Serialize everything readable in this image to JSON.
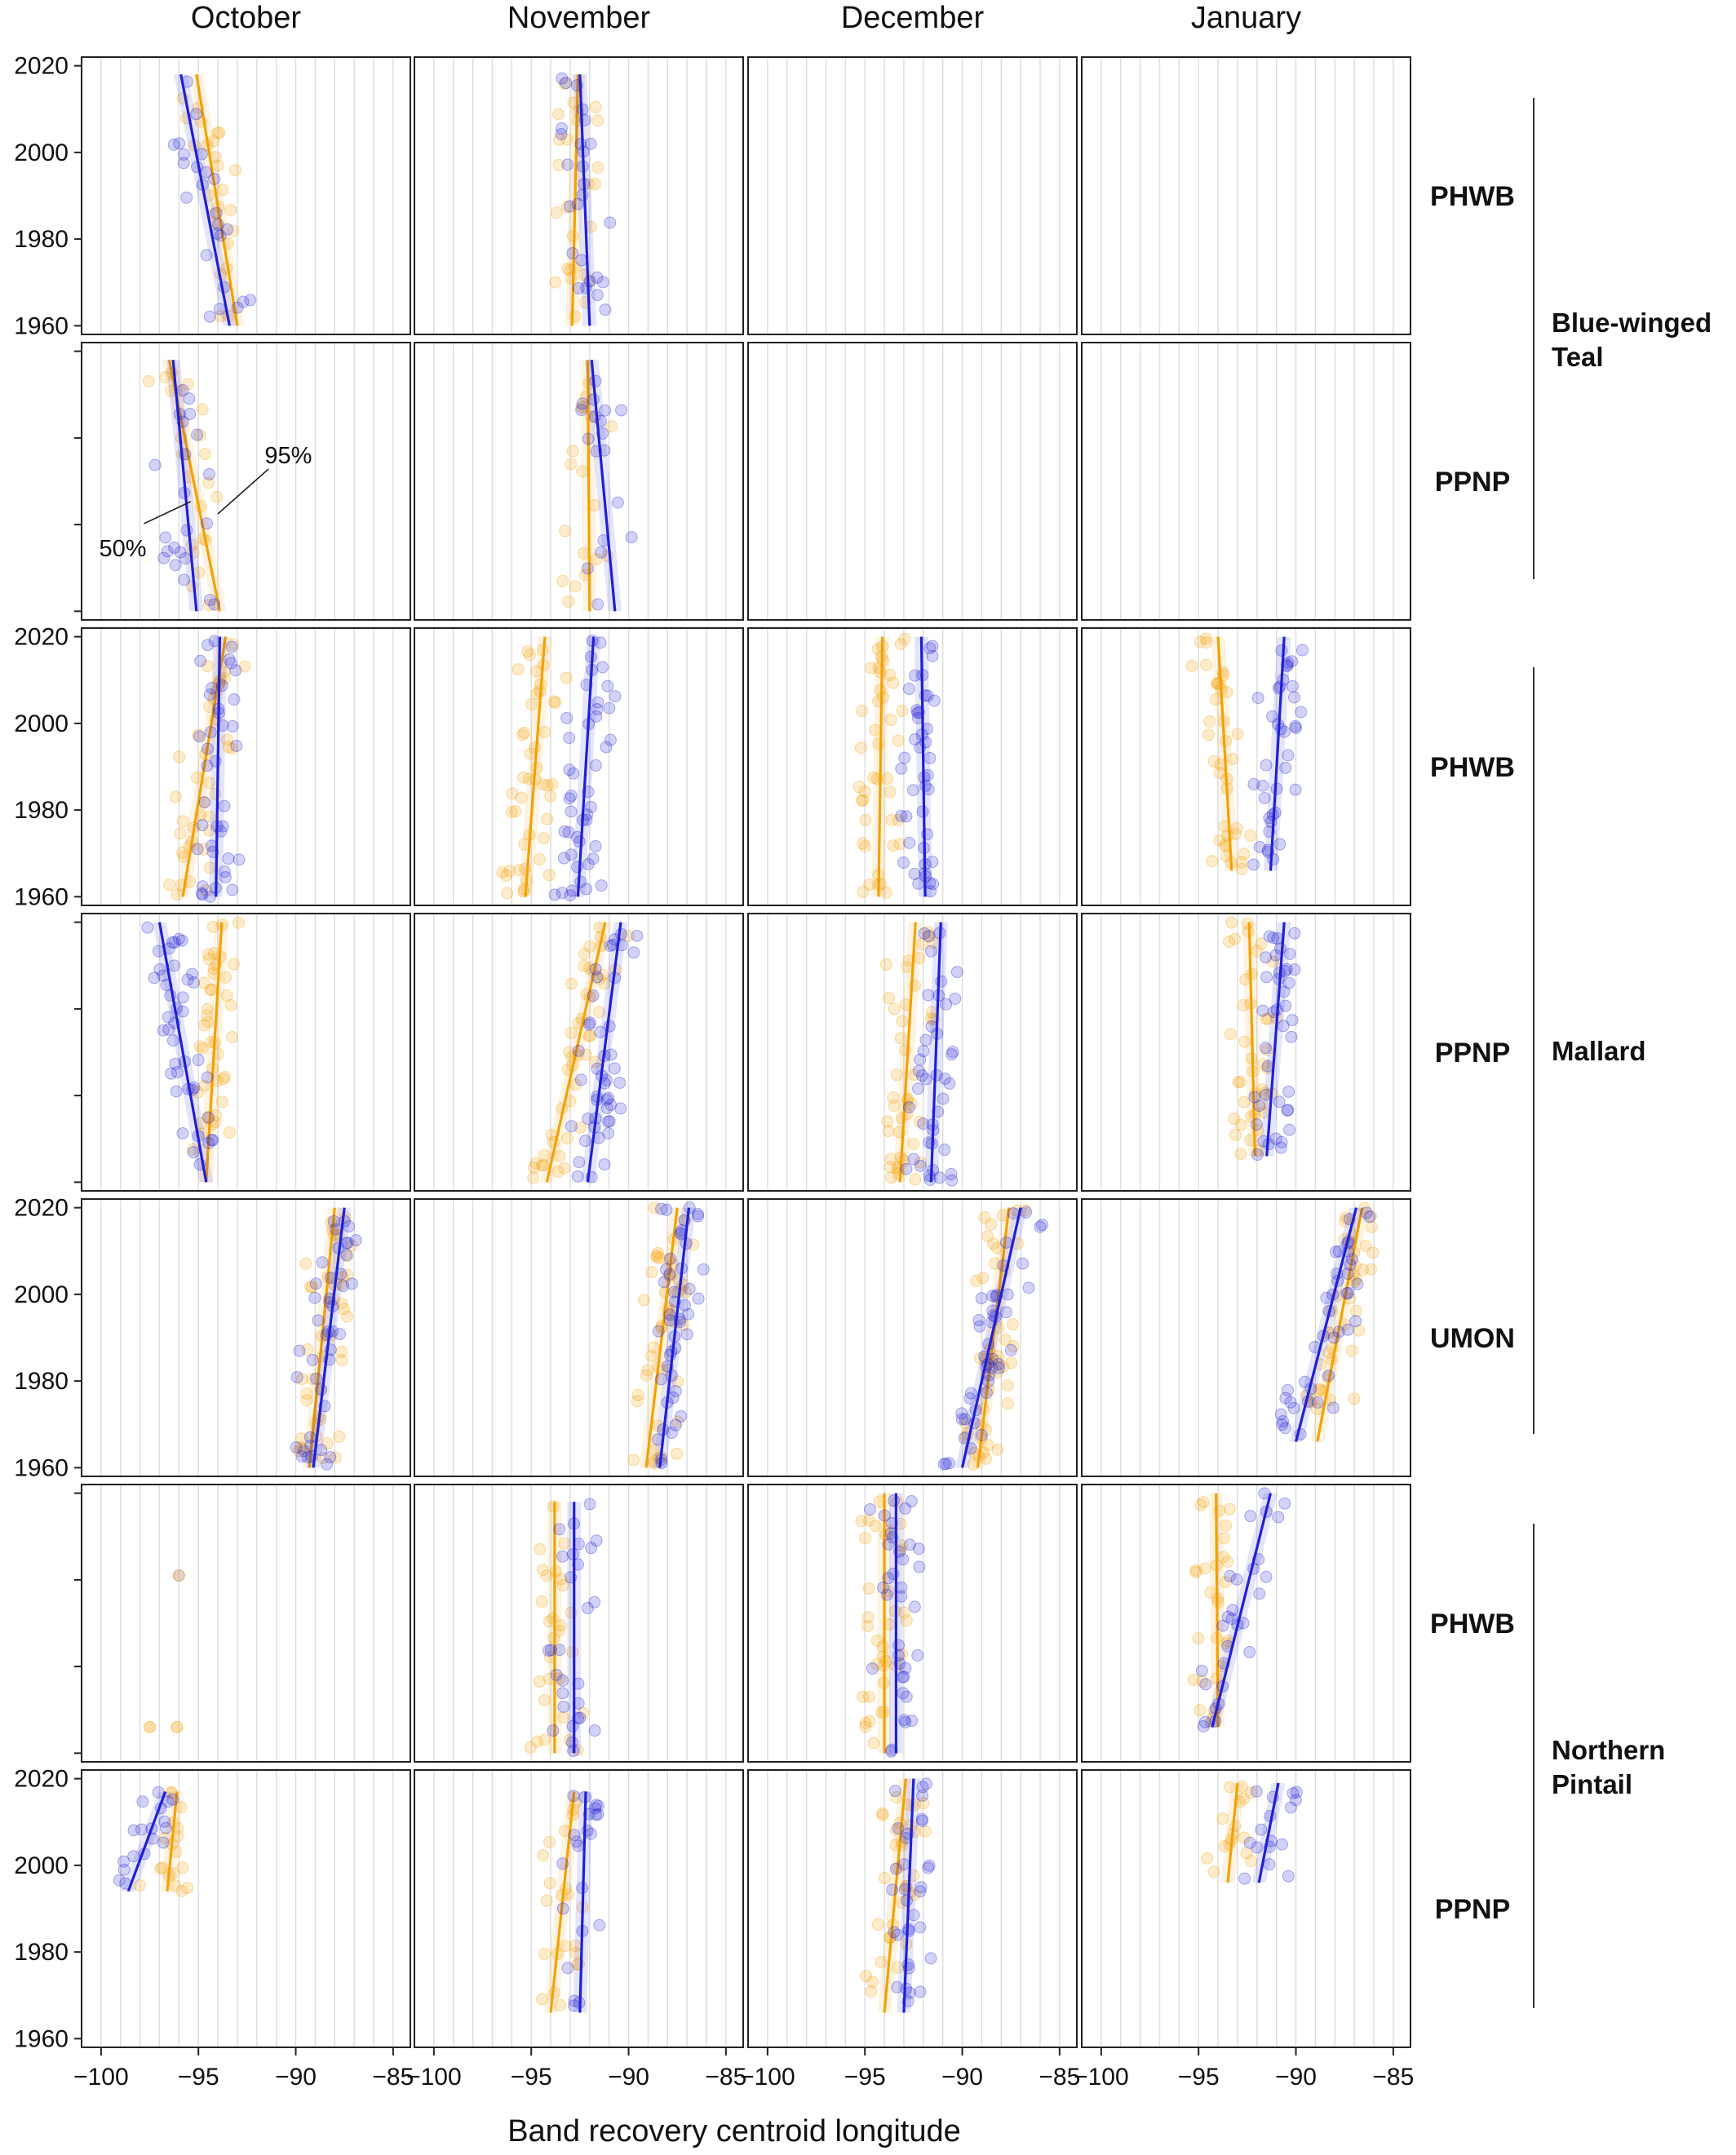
{
  "chart_data": {
    "type": "scatter",
    "xlabel": "Band recovery centroid longitude",
    "ylabel": "",
    "xlim": [
      -101,
      -84
    ],
    "ylim": [
      1958,
      2022
    ],
    "x_ticks": [
      -100,
      -95,
      -90,
      -85
    ],
    "x_tick_labels": [
      "−100",
      "−95",
      "−90",
      "−85"
    ],
    "y_ticks": [
      1960,
      1980,
      2000,
      2020
    ],
    "grid": "vertical",
    "columns": [
      "October",
      "November",
      "December",
      "January"
    ],
    "species": [
      "Blue-winged Teal",
      "Blue-winged Teal",
      "Mallard",
      "Mallard",
      "Mallard",
      "Northern Pintail",
      "Northern Pintail"
    ],
    "species_labels": [
      {
        "name": "Blue-winged Teal",
        "lines": [
          "Blue-winged",
          "Teal"
        ]
      },
      {
        "name": "Mallard",
        "lines": [
          "Mallard"
        ]
      },
      {
        "name": "Northern Pintail",
        "lines": [
          "Northern",
          "Pintail"
        ]
      }
    ],
    "regions": [
      "PHWB",
      "PPNP",
      "PHWB",
      "PPNP",
      "UMON",
      "PHWB",
      "PPNP"
    ],
    "series_colors": {
      "p50": "#1f1fd6",
      "p95": "#f5a000"
    },
    "annotations": [
      {
        "text": "95%",
        "panel": [
          1,
          0
        ]
      },
      {
        "text": "50%",
        "panel": [
          1,
          0
        ]
      }
    ],
    "panels": [
      [
        {
          "p50": {
            "y": [
              1960,
              2018
            ],
            "x": [
              -93.4,
              -95.9
            ]
          },
          "p95": {
            "y": [
              1960,
              2018
            ],
            "x": [
              -93.0,
              -95.1
            ]
          },
          "n50": 24,
          "n95": 24,
          "seed": 11
        },
        {
          "p50": {
            "y": [
              1960,
              2018
            ],
            "x": [
              -92.0,
              -92.5
            ]
          },
          "p95": {
            "y": [
              1960,
              2018
            ],
            "x": [
              -92.9,
              -92.6
            ]
          },
          "n50": 26,
          "n95": 26,
          "seed": 12
        },
        null,
        null
      ],
      [
        {
          "p50": {
            "y": [
              1960,
              2018
            ],
            "x": [
              -95.1,
              -96.3
            ]
          },
          "p95": {
            "y": [
              1960,
              2018
            ],
            "x": [
              -93.9,
              -96.5
            ]
          },
          "n50": 22,
          "n95": 22,
          "seed": 21
        },
        {
          "p50": {
            "y": [
              1960,
              2018
            ],
            "x": [
              -90.7,
              -91.9
            ]
          },
          "p95": {
            "y": [
              1960,
              2018
            ],
            "x": [
              -92.0,
              -92.1
            ]
          },
          "n50": 18,
          "n95": 18,
          "seed": 22
        },
        null,
        null
      ],
      [
        {
          "p50": {
            "y": [
              1960,
              2020
            ],
            "x": [
              -94.1,
              -93.9
            ]
          },
          "p95": {
            "y": [
              1960,
              2020
            ],
            "x": [
              -95.8,
              -93.6
            ]
          },
          "n50": 40,
          "n95": 40,
          "seed": 31
        },
        {
          "p50": {
            "y": [
              1960,
              2020
            ],
            "x": [
              -92.6,
              -91.8
            ]
          },
          "p95": {
            "y": [
              1960,
              2020
            ],
            "x": [
              -95.3,
              -94.3
            ]
          },
          "n50": 45,
          "n95": 45,
          "seed": 32
        },
        {
          "p50": {
            "y": [
              1960,
              2020
            ],
            "x": [
              -91.9,
              -92.1
            ]
          },
          "p95": {
            "y": [
              1960,
              2020
            ],
            "x": [
              -94.3,
              -94.1
            ]
          },
          "n50": 42,
          "n95": 42,
          "seed": 33
        },
        {
          "p50": {
            "y": [
              1966,
              2020
            ],
            "x": [
              -91.3,
              -90.6
            ]
          },
          "p95": {
            "y": [
              1966,
              2020
            ],
            "x": [
              -93.3,
              -94.0
            ]
          },
          "n50": 38,
          "n95": 38,
          "seed": 34
        }
      ],
      [
        {
          "p50": {
            "y": [
              1960,
              2020
            ],
            "x": [
              -94.6,
              -97.0
            ]
          },
          "p95": {
            "y": [
              1960,
              2020
            ],
            "x": [
              -94.6,
              -93.8
            ]
          },
          "n50": 42,
          "n95": 42,
          "seed": 41
        },
        {
          "p50": {
            "y": [
              1960,
              2020
            ],
            "x": [
              -92.1,
              -90.4
            ]
          },
          "p95": {
            "y": [
              1960,
              2020
            ],
            "x": [
              -94.2,
              -91.2
            ]
          },
          "n50": 45,
          "n95": 45,
          "seed": 42
        },
        {
          "p50": {
            "y": [
              1960,
              2020
            ],
            "x": [
              -91.6,
              -91.1
            ]
          },
          "p95": {
            "y": [
              1960,
              2020
            ],
            "x": [
              -93.2,
              -92.4
            ]
          },
          "n50": 42,
          "n95": 42,
          "seed": 43
        },
        {
          "p50": {
            "y": [
              1966,
              2020
            ],
            "x": [
              -91.5,
              -90.6
            ]
          },
          "p95": {
            "y": [
              1966,
              2020
            ],
            "x": [
              -92.1,
              -92.4
            ]
          },
          "n50": 40,
          "n95": 40,
          "seed": 44
        }
      ],
      [
        {
          "p50": {
            "y": [
              1960,
              2020
            ],
            "x": [
              -89.1,
              -87.5
            ]
          },
          "p95": {
            "y": [
              1960,
              2020
            ],
            "x": [
              -89.3,
              -88.0
            ]
          },
          "n50": 42,
          "n95": 42,
          "seed": 51
        },
        {
          "p50": {
            "y": [
              1960,
              2020
            ],
            "x": [
              -88.4,
              -86.9
            ]
          },
          "p95": {
            "y": [
              1960,
              2020
            ],
            "x": [
              -89.1,
              -87.5
            ]
          },
          "n50": 45,
          "n95": 45,
          "seed": 52
        },
        {
          "p50": {
            "y": [
              1960,
              2020
            ],
            "x": [
              -90.0,
              -87.0
            ]
          },
          "p95": {
            "y": [
              1960,
              2020
            ],
            "x": [
              -89.2,
              -87.6
            ]
          },
          "n50": 45,
          "n95": 45,
          "seed": 53
        },
        {
          "p50": {
            "y": [
              1966,
              2020
            ],
            "x": [
              -90.0,
              -86.9
            ]
          },
          "p95": {
            "y": [
              1966,
              2020
            ],
            "x": [
              -88.9,
              -86.6
            ]
          },
          "n50": 40,
          "n95": 40,
          "seed": 54
        }
      ],
      [
        {
          "p50": null,
          "p95": null,
          "n50": 0,
          "n95": 0,
          "seed": 61,
          "points": [
            {
              "x": -96.0,
              "y": 2001,
              "s": "mix"
            },
            {
              "x": -97.5,
              "y": 1966,
              "s": "p95"
            },
            {
              "x": -96.1,
              "y": 1966,
              "s": "p95"
            }
          ]
        },
        {
          "p50": {
            "y": [
              1960,
              2018
            ],
            "x": [
              -92.8,
              -92.8
            ]
          },
          "p95": {
            "y": [
              1960,
              2018
            ],
            "x": [
              -93.8,
              -93.8
            ]
          },
          "n50": 28,
          "n95": 28,
          "seed": 62
        },
        {
          "p50": {
            "y": [
              1960,
              2020
            ],
            "x": [
              -93.4,
              -93.4
            ]
          },
          "p95": {
            "y": [
              1960,
              2020
            ],
            "x": [
              -94.0,
              -94.0
            ]
          },
          "n50": 36,
          "n95": 36,
          "seed": 63
        },
        {
          "p50": {
            "y": [
              1966,
              2020
            ],
            "x": [
              -94.3,
              -91.3
            ]
          },
          "p95": {
            "y": [
              1966,
              2020
            ],
            "x": [
              -94.0,
              -94.1
            ]
          },
          "n50": 28,
          "n95": 28,
          "seed": 64
        }
      ],
      [
        {
          "p50": {
            "y": [
              1994,
              2017
            ],
            "x": [
              -98.6,
              -96.7
            ]
          },
          "p95": {
            "y": [
              1994,
              2017
            ],
            "x": [
              -96.6,
              -96.1
            ]
          },
          "n50": 18,
          "n95": 18,
          "seed": 71
        },
        {
          "p50": {
            "y": [
              1966,
              2017
            ],
            "x": [
              -92.5,
              -92.2
            ]
          },
          "p95": {
            "y": [
              1966,
              2017
            ],
            "x": [
              -94.0,
              -92.8
            ]
          },
          "n50": 22,
          "n95": 22,
          "seed": 72
        },
        {
          "p50": {
            "y": [
              1966,
              2020
            ],
            "x": [
              -93.0,
              -92.5
            ]
          },
          "p95": {
            "y": [
              1966,
              2020
            ],
            "x": [
              -94.0,
              -92.9
            ]
          },
          "n50": 32,
          "n95": 32,
          "seed": 73
        },
        {
          "p50": {
            "y": [
              1996,
              2019
            ],
            "x": [
              -91.9,
              -90.9
            ]
          },
          "p95": {
            "y": [
              1996,
              2019
            ],
            "x": [
              -93.5,
              -93.0
            ]
          },
          "n50": 16,
          "n95": 16,
          "seed": 74
        }
      ]
    ]
  }
}
